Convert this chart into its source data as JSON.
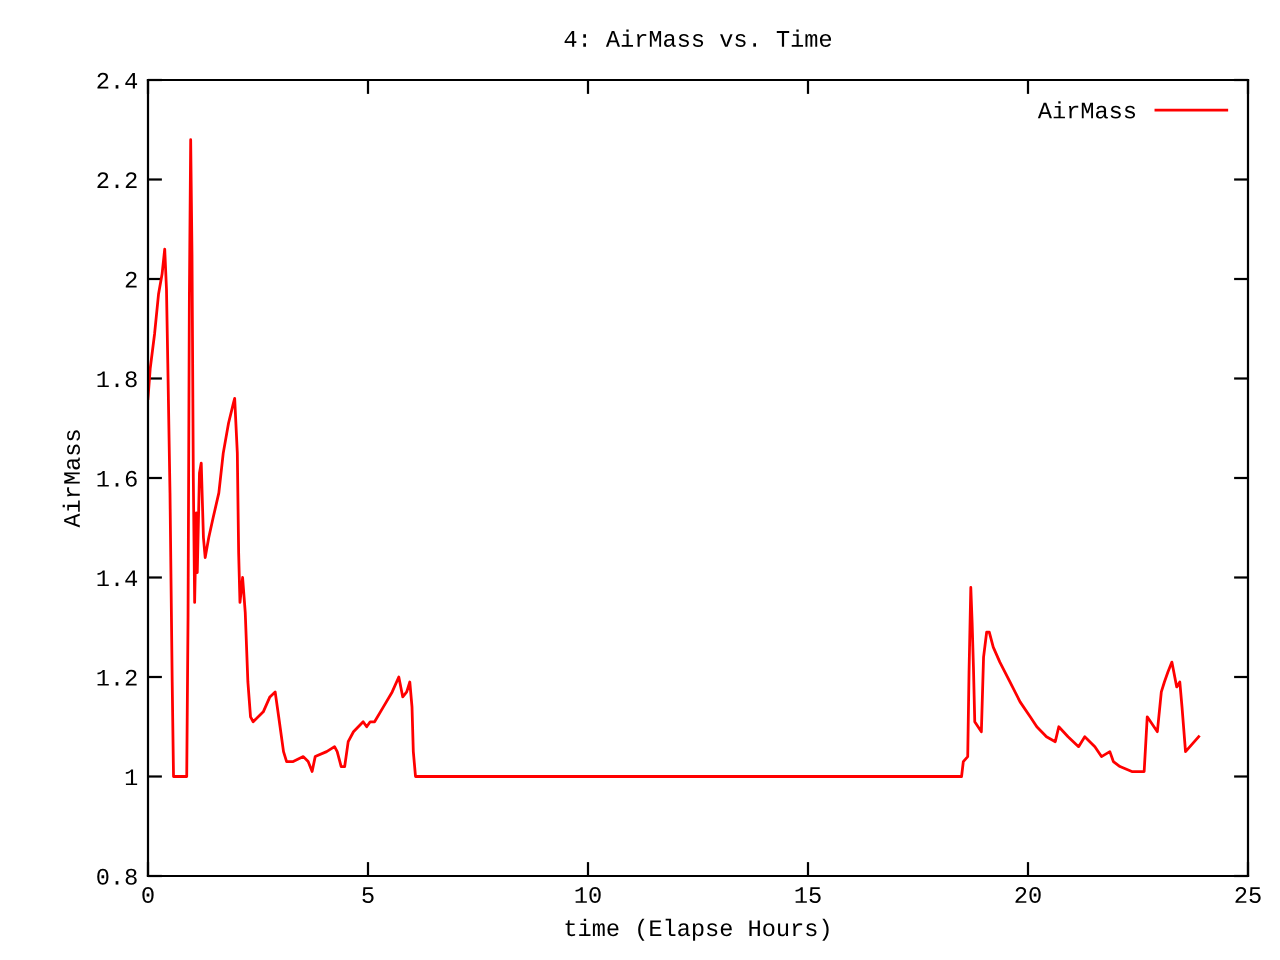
{
  "chart_data": {
    "type": "line",
    "title": "4: AirMass vs. Time",
    "xlabel": "time (Elapse Hours)",
    "ylabel": "AirMass",
    "xlim": [
      0,
      25
    ],
    "ylim": [
      0.8,
      2.4
    ],
    "xticks": [
      0,
      5,
      10,
      15,
      20,
      25
    ],
    "yticks": [
      0.8,
      1,
      1.2,
      1.4,
      1.6,
      1.8,
      2,
      2.2,
      2.4
    ],
    "grid": false,
    "legend": "top right",
    "marker": "none",
    "line_style": "solid",
    "series": [
      {
        "name": "AirMass",
        "color": "#ff0000",
        "x": [
          0,
          0.05,
          0.15,
          0.24,
          0.32,
          0.38,
          0.42,
          0.45,
          0.5,
          0.55,
          0.58,
          0.88,
          0.91,
          0.94,
          0.97,
          1.0,
          1.03,
          1.06,
          1.1,
          1.12,
          1.17,
          1.21,
          1.26,
          1.3,
          1.38,
          1.48,
          1.61,
          1.71,
          1.83,
          1.94,
          1.97,
          2.03,
          2.06,
          2.09,
          2.15,
          2.21,
          2.27,
          2.33,
          2.39,
          2.62,
          2.77,
          2.89,
          2.97,
          3.08,
          3.15,
          3.3,
          3.53,
          3.64,
          3.73,
          3.8,
          4.06,
          4.24,
          4.3,
          4.39,
          4.47,
          4.55,
          4.67,
          4.89,
          4.97,
          5.05,
          5.15,
          5.35,
          5.55,
          5.7,
          5.79,
          5.88,
          5.95,
          6.0,
          6.03,
          6.08,
          18.49,
          18.53,
          18.63,
          18.66,
          18.7,
          18.73,
          18.76,
          18.79,
          18.94,
          18.99,
          19.06,
          19.12,
          19.21,
          19.36,
          19.59,
          19.82,
          20.05,
          20.2,
          20.42,
          20.62,
          20.7,
          20.91,
          21.15,
          21.29,
          21.52,
          21.67,
          21.86,
          21.94,
          22.09,
          22.36,
          22.64,
          22.71,
          22.94,
          23.03,
          23.1,
          23.18,
          23.27,
          23.38,
          23.45,
          23.5,
          23.58,
          23.88
        ],
        "values": [
          1.76,
          1.82,
          1.89,
          1.97,
          2.01,
          2.06,
          1.98,
          1.83,
          1.57,
          1.19,
          1.0,
          1.0,
          1.32,
          1.96,
          2.28,
          2.05,
          1.6,
          1.35,
          1.53,
          1.41,
          1.61,
          1.63,
          1.48,
          1.44,
          1.48,
          1.52,
          1.57,
          1.65,
          1.71,
          1.75,
          1.76,
          1.65,
          1.45,
          1.35,
          1.4,
          1.33,
          1.19,
          1.12,
          1.11,
          1.13,
          1.16,
          1.17,
          1.12,
          1.05,
          1.03,
          1.03,
          1.04,
          1.03,
          1.01,
          1.04,
          1.05,
          1.06,
          1.05,
          1.02,
          1.02,
          1.07,
          1.09,
          1.11,
          1.1,
          1.11,
          1.11,
          1.14,
          1.17,
          1.2,
          1.16,
          1.17,
          1.19,
          1.14,
          1.05,
          1.0,
          1.0,
          1.03,
          1.04,
          1.21,
          1.38,
          1.31,
          1.22,
          1.11,
          1.09,
          1.24,
          1.29,
          1.29,
          1.26,
          1.23,
          1.19,
          1.15,
          1.12,
          1.1,
          1.08,
          1.07,
          1.1,
          1.08,
          1.06,
          1.08,
          1.06,
          1.04,
          1.05,
          1.03,
          1.02,
          1.01,
          1.01,
          1.12,
          1.09,
          1.17,
          1.19,
          1.21,
          1.23,
          1.18,
          1.19,
          1.14,
          1.05,
          1.08
        ]
      }
    ]
  }
}
